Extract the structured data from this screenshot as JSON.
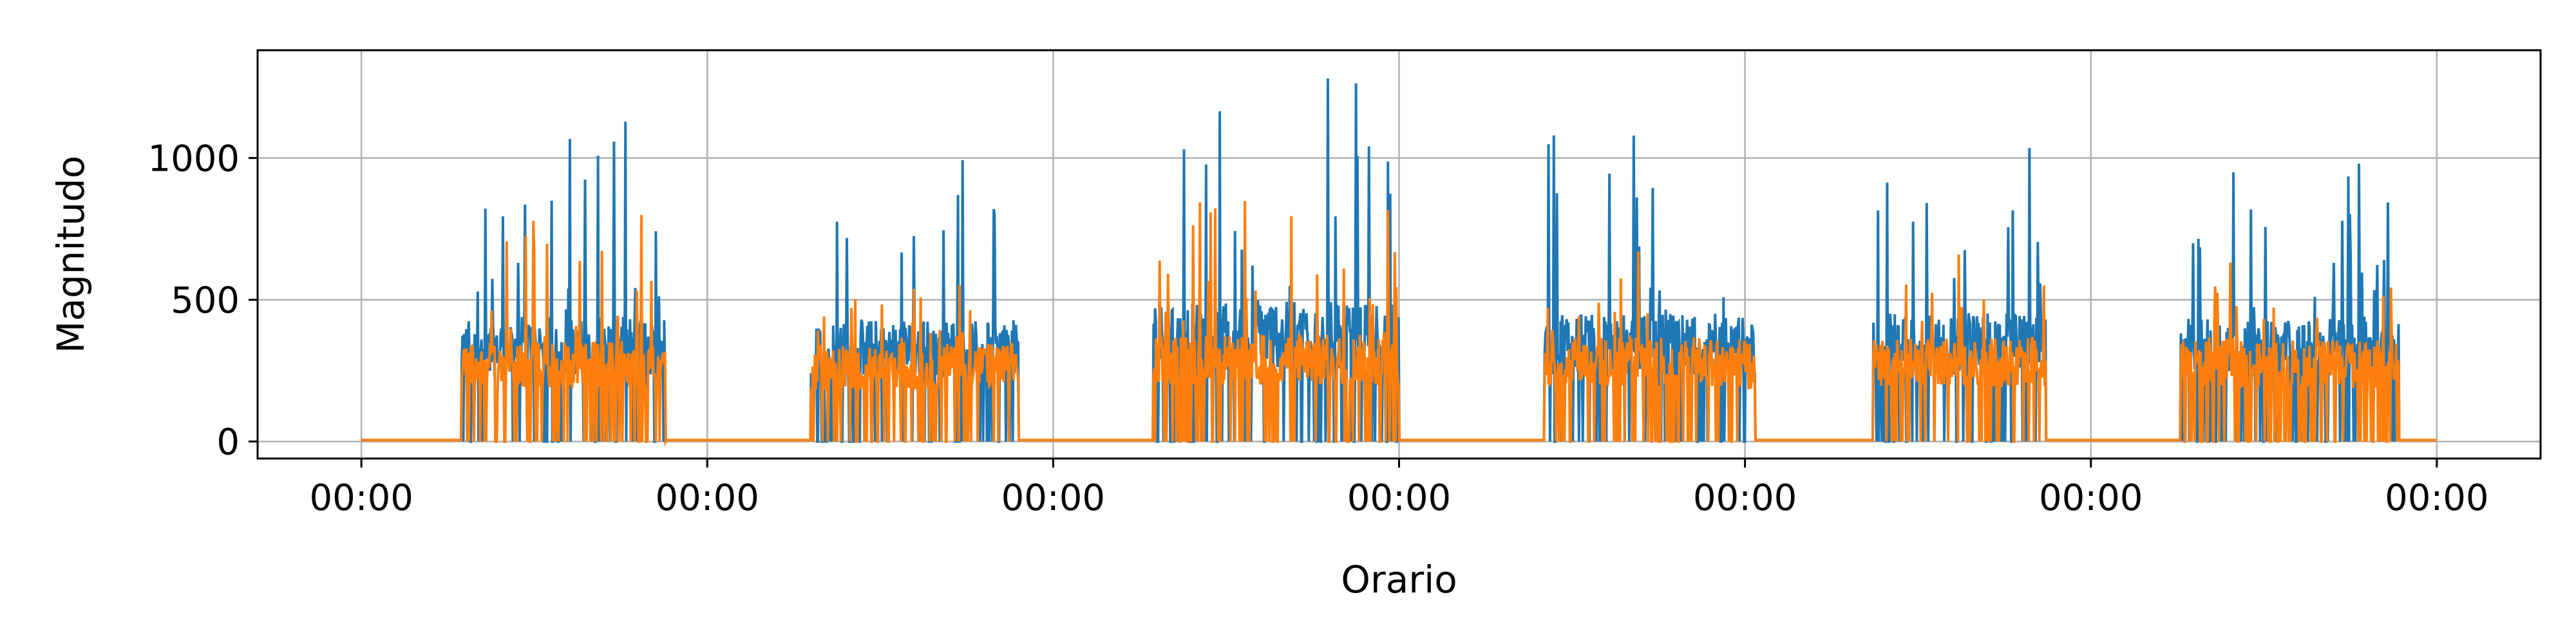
{
  "chart_data": {
    "type": "line",
    "xlabel": "Orario",
    "ylabel": "Magnitudo",
    "x_tick_labels": [
      "00:00",
      "00:00",
      "00:00",
      "00:00",
      "00:00",
      "00:00",
      "00:00"
    ],
    "x_ticks": [
      0,
      1,
      2,
      3,
      4,
      5,
      6
    ],
    "xlim": [
      -0.3,
      6.3
    ],
    "y_ticks": [
      0,
      500,
      1000
    ],
    "y_tick_labels": [
      "0",
      "500",
      "1000"
    ],
    "ylim": [
      -60,
      1380
    ],
    "grid": true,
    "colors": [
      "#1f77b4",
      "#ff7f0e"
    ],
    "day_segments": [
      {
        "day": 0,
        "start": 0.29,
        "end": 0.88,
        "blue_base": 420,
        "orange_base": 340,
        "blue_peak": 1170,
        "orange_peak": 810
      },
      {
        "day": 1,
        "start": 0.3,
        "end": 0.9,
        "blue_base": 410,
        "orange_base": 330,
        "blue_peak": 1050,
        "orange_peak": 600
      },
      {
        "day": 2,
        "start": 0.29,
        "end": 1.0,
        "blue_base": 470,
        "orange_base": 360,
        "blue_peak": 1310,
        "orange_peak": 870
      },
      {
        "day": 3,
        "start": 0.42,
        "end": 1.03,
        "blue_base": 430,
        "orange_base": 350,
        "blue_peak": 1120,
        "orange_peak": 680
      },
      {
        "day": 4,
        "start": 0.37,
        "end": 0.87,
        "blue_base": 430,
        "orange_base": 350,
        "blue_peak": 1120,
        "orange_peak": 660
      },
      {
        "day": 5,
        "start": 0.26,
        "end": 0.89,
        "blue_base": 420,
        "orange_base": 340,
        "blue_peak": 1060,
        "orange_peak": 640
      }
    ],
    "series": [
      {
        "values_note_omitted": true
      },
      {
        "values_note_omitted": true
      }
    ]
  }
}
